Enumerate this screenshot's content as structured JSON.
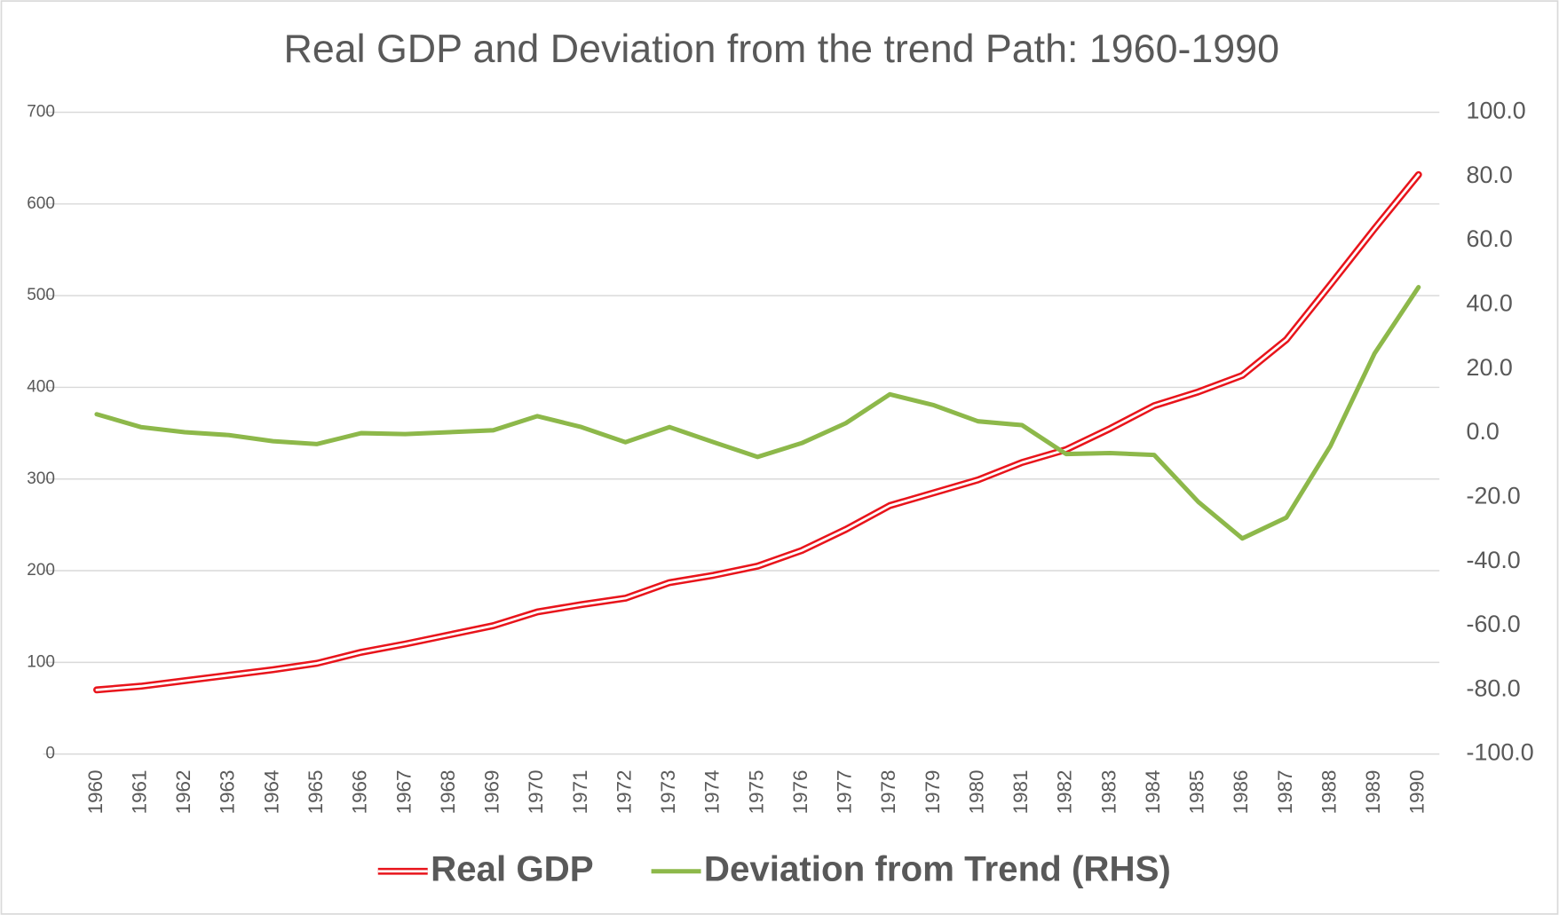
{
  "chart_data": {
    "type": "line",
    "title": "Real GDP and Deviation from the trend  Path: 1960-1990",
    "categories": [
      "1960",
      "1961",
      "1962",
      "1963",
      "1964",
      "1965",
      "1966",
      "1967",
      "1968",
      "1969",
      "1970",
      "1971",
      "1972",
      "1973",
      "1974",
      "1975",
      "1976",
      "1977",
      "1978",
      "1979",
      "1980",
      "1981",
      "1982",
      "1983",
      "1984",
      "1985",
      "1986",
      "1987",
      "1988",
      "1989",
      "1990"
    ],
    "series": [
      {
        "name": "Real GDP",
        "color": "#e8141b",
        "line_style": "double",
        "values": [
          70,
          74,
          80,
          86,
          92,
          99,
          111,
          120,
          130,
          140,
          155,
          163,
          170,
          187,
          195,
          205,
          222,
          245,
          271,
          285,
          299,
          318,
          332,
          355,
          380,
          395,
          413,
          452,
          512,
          573,
          632
        ]
      },
      {
        "name": "Deviation from Trend (RHS)",
        "color": "#8db84a",
        "line_style": "solid",
        "axis": "y2",
        "values": [
          5.9,
          1.9,
          0.3,
          -0.6,
          -2.5,
          -3.4,
          0,
          -0.3,
          0.3,
          0.9,
          5.3,
          1.9,
          -2.8,
          1.9,
          -2.8,
          -7.4,
          -3.1,
          3.1,
          12.1,
          8.7,
          3.7,
          2.5,
          -6.5,
          -6.2,
          -6.8,
          -21.4,
          -32.8,
          -26.3,
          -4.0,
          24.8,
          45.5
        ]
      }
    ],
    "ylim": [
      0,
      700
    ],
    "yticks": [
      0,
      100,
      200,
      300,
      400,
      500,
      600,
      700
    ],
    "y2lim": [
      -100,
      100
    ],
    "y2ticks": [
      {
        "value": -100,
        "label": "-100.0"
      },
      {
        "value": -80,
        "label": "-80.0"
      },
      {
        "value": -60,
        "label": "-60.0"
      },
      {
        "value": -40,
        "label": "-40.0"
      },
      {
        "value": -20,
        "label": "-20.0"
      },
      {
        "value": 0,
        "label": "0.0"
      },
      {
        "value": 20,
        "label": "20.0"
      },
      {
        "value": 40,
        "label": "40.0"
      },
      {
        "value": 60,
        "label": "60.0"
      },
      {
        "value": 80,
        "label": "80.0"
      },
      {
        "value": 100,
        "label": "100.0"
      }
    ],
    "grid": true,
    "legend": "bottom"
  }
}
